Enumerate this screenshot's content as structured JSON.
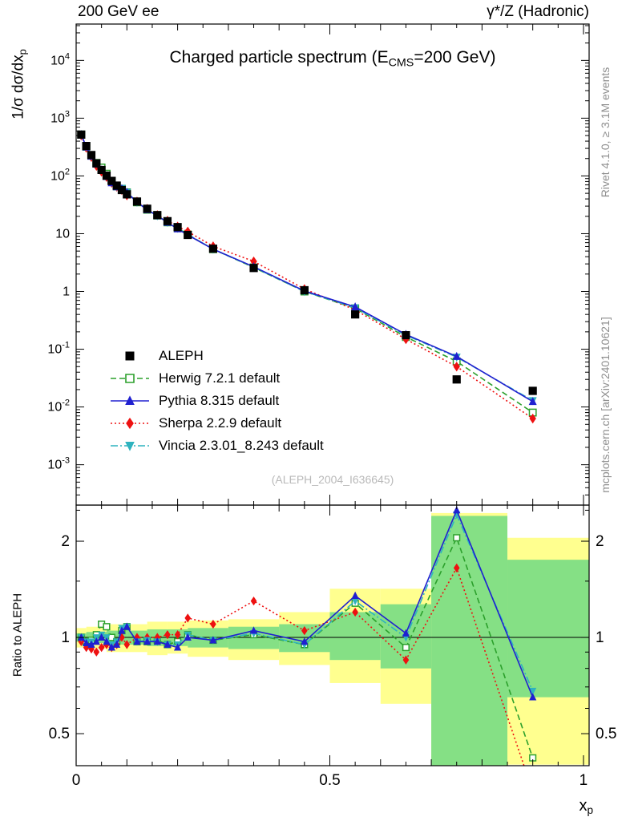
{
  "header": {
    "left": "200 GeV ee",
    "right": "γ*/Z (Hadronic)"
  },
  "title": {
    "pre": "Charged particle spectrum (E",
    "sub": "CMS",
    "post": "=200 GeV)"
  },
  "axis": {
    "y_main": "1/σ  dσ/dx",
    "y_main_sub": "p",
    "y_ratio": "Ratio to ALEPH",
    "x": "x",
    "x_sub": "p"
  },
  "side": {
    "top": "Rivet 4.1.0, ≥ 3.1M events",
    "bottom": "mcplots.cern.ch [arXiv:2401.10621]"
  },
  "watermark": "(ALEPH_2004_I636645)",
  "colors": {
    "band_yellow": "#ffff8f",
    "band_green": "#85e085",
    "frame": "#000000"
  },
  "chart_data": [
    {
      "type": "line",
      "yscale": "log",
      "xlim": [
        0,
        1.0111
      ],
      "ylim": [
        0.0002,
        42600
      ],
      "x": [
        0.01,
        0.02,
        0.03,
        0.04,
        0.05,
        0.06,
        0.07,
        0.08,
        0.09,
        0.1,
        0.12,
        0.14,
        0.16,
        0.18,
        0.2,
        0.22,
        0.27,
        0.35,
        0.45,
        0.55,
        0.65,
        0.75,
        0.9
      ],
      "series": [
        {
          "name": "Herwig 7.2.1 default",
          "color": "#2ca02c",
          "marker": "square-open",
          "line": "dash",
          "values": [
            520,
            320,
            225,
            168,
            140,
            109,
            82,
            66,
            60,
            52,
            35,
            26,
            20.6,
            15.7,
            12.6,
            9.7,
            5.4,
            2.6,
            1.0,
            0.51,
            0.163,
            0.0615,
            0.008
          ]
        },
        {
          "name": "Sherpa 2.2.9 default",
          "color": "#ee1111",
          "marker": "diamond",
          "line": "dot",
          "values": [
            504,
            307,
            212,
            149,
            118,
            96,
            76,
            65,
            57,
            46,
            36,
            27,
            21,
            16.8,
            13.3,
            10.9,
            6.05,
            3.32,
            1.1,
            0.48,
            0.149,
            0.05,
            0.0063
          ]
        },
        {
          "name": "Vincia 2.3.01_8.243 default",
          "color": "#2fb3bf",
          "marker": "triangle-down",
          "line": "dashdot",
          "values": [
            520,
            320,
            223,
            165,
            130,
            101,
            78,
            66,
            61,
            52,
            35,
            26.5,
            20.4,
            15.7,
            12.4,
            9.7,
            5.4,
            2.63,
            1.0,
            0.52,
            0.175,
            0.073,
            0.0129
          ]
        },
        {
          "name": "Pythia 8.315 default",
          "color": "#2020d0",
          "marker": "triangle-up",
          "line": "solid",
          "values": [
            520,
            317,
            219,
            160,
            127,
            98,
            76,
            65,
            60,
            52,
            35,
            26,
            20.4,
            15.7,
            12.1,
            9.5,
            5.4,
            2.68,
            1.02,
            0.54,
            0.18,
            0.075,
            0.0124
          ]
        },
        {
          "name": "ALEPH",
          "color": "#000000",
          "marker": "square",
          "line": "none",
          "values": [
            520,
            330,
            230,
            165,
            127,
            101,
            82,
            68,
            57,
            48,
            36,
            27,
            21,
            16.5,
            13,
            9.5,
            5.5,
            2.55,
            1.05,
            0.4,
            0.175,
            0.03,
            0.019
          ]
        }
      ],
      "legend_order": [
        "ALEPH",
        "Herwig 7.2.1 default",
        "Pythia 8.315 default",
        "Sherpa 2.2.9 default",
        "Vincia 2.3.01_8.243 default"
      ]
    },
    {
      "type": "line",
      "yscale": "log",
      "xlim": [
        0,
        1.0111
      ],
      "ylim": [
        0.397,
        2.594
      ],
      "yticks": [
        0.5,
        1,
        2
      ],
      "yticks_minor": [
        0.6,
        0.7,
        0.8,
        0.9,
        1.5,
        2.5
      ],
      "xticks": [
        0,
        0.5,
        1
      ],
      "ref_line": 1,
      "x": [
        0.01,
        0.02,
        0.03,
        0.04,
        0.05,
        0.06,
        0.07,
        0.08,
        0.09,
        0.1,
        0.12,
        0.14,
        0.16,
        0.18,
        0.2,
        0.22,
        0.27,
        0.35,
        0.45,
        0.55,
        0.65,
        0.75,
        0.9
      ],
      "series": [
        {
          "name": "Herwig 7.2.1 default",
          "color": "#2ca02c",
          "marker": "square-open",
          "line": "dash",
          "values": [
            1.0,
            0.97,
            0.98,
            1.02,
            1.1,
            1.08,
            1.0,
            0.97,
            1.05,
            1.08,
            0.97,
            0.97,
            0.98,
            0.95,
            0.97,
            1.02,
            0.98,
            1.02,
            0.95,
            1.28,
            0.93,
            2.05,
            0.42
          ]
        },
        {
          "name": "Sherpa 2.2.9 default",
          "color": "#ee1111",
          "marker": "diamond",
          "line": "dot",
          "values": [
            0.97,
            0.93,
            0.92,
            0.9,
            0.93,
            0.95,
            0.93,
            0.95,
            1.0,
            0.95,
            1.0,
            1.0,
            1.0,
            1.02,
            1.02,
            1.15,
            1.1,
            1.3,
            1.05,
            1.2,
            0.85,
            1.65,
            0.33
          ]
        },
        {
          "name": "Vincia 2.3.01_8.243 default",
          "color": "#2fb3bf",
          "marker": "triangle-down",
          "line": "dashdot",
          "values": [
            1.0,
            0.97,
            0.97,
            1.0,
            1.02,
            1.0,
            0.95,
            0.97,
            1.07,
            1.08,
            0.97,
            0.98,
            0.97,
            0.95,
            0.95,
            1.02,
            0.98,
            1.03,
            0.95,
            1.3,
            1.0,
            2.42,
            0.68
          ]
        },
        {
          "name": "Pythia 8.315 default",
          "color": "#2020d0",
          "marker": "triangle-up",
          "line": "solid",
          "values": [
            1.0,
            0.96,
            0.95,
            0.97,
            1.0,
            0.97,
            0.93,
            0.95,
            1.05,
            1.08,
            0.97,
            0.97,
            0.97,
            0.95,
            0.93,
            1.0,
            0.98,
            1.05,
            0.97,
            1.35,
            1.03,
            2.5,
            0.65
          ]
        }
      ],
      "bands": {
        "yellow": [
          [
            0.0,
            0.02,
            0.93,
            1.07
          ],
          [
            0.02,
            0.06,
            0.92,
            1.08
          ],
          [
            0.06,
            0.1,
            0.9,
            1.1
          ],
          [
            0.1,
            0.14,
            0.9,
            1.1
          ],
          [
            0.14,
            0.18,
            0.88,
            1.12
          ],
          [
            0.18,
            0.22,
            0.89,
            1.12
          ],
          [
            0.22,
            0.3,
            0.87,
            1.13
          ],
          [
            0.3,
            0.4,
            0.85,
            1.14
          ],
          [
            0.4,
            0.5,
            0.82,
            1.2
          ],
          [
            0.5,
            0.6,
            0.72,
            1.42
          ],
          [
            0.6,
            0.7,
            0.62,
            1.42
          ],
          [
            0.7,
            0.85,
            0.38,
            2.45
          ],
          [
            0.85,
            1.02,
            0.4,
            2.05
          ]
        ],
        "green": [
          [
            0.0,
            0.02,
            0.97,
            1.03
          ],
          [
            0.02,
            0.06,
            0.96,
            1.04
          ],
          [
            0.06,
            0.1,
            0.95,
            1.05
          ],
          [
            0.1,
            0.14,
            0.95,
            1.05
          ],
          [
            0.14,
            0.18,
            0.94,
            1.06
          ],
          [
            0.18,
            0.22,
            0.94,
            1.06
          ],
          [
            0.22,
            0.3,
            0.93,
            1.07
          ],
          [
            0.3,
            0.4,
            0.92,
            1.08
          ],
          [
            0.4,
            0.5,
            0.9,
            1.1
          ],
          [
            0.5,
            0.6,
            0.85,
            1.2
          ],
          [
            0.6,
            0.7,
            0.8,
            1.27
          ],
          [
            0.7,
            0.85,
            0.38,
            2.4
          ],
          [
            0.85,
            1.02,
            0.65,
            1.75
          ]
        ]
      }
    }
  ]
}
